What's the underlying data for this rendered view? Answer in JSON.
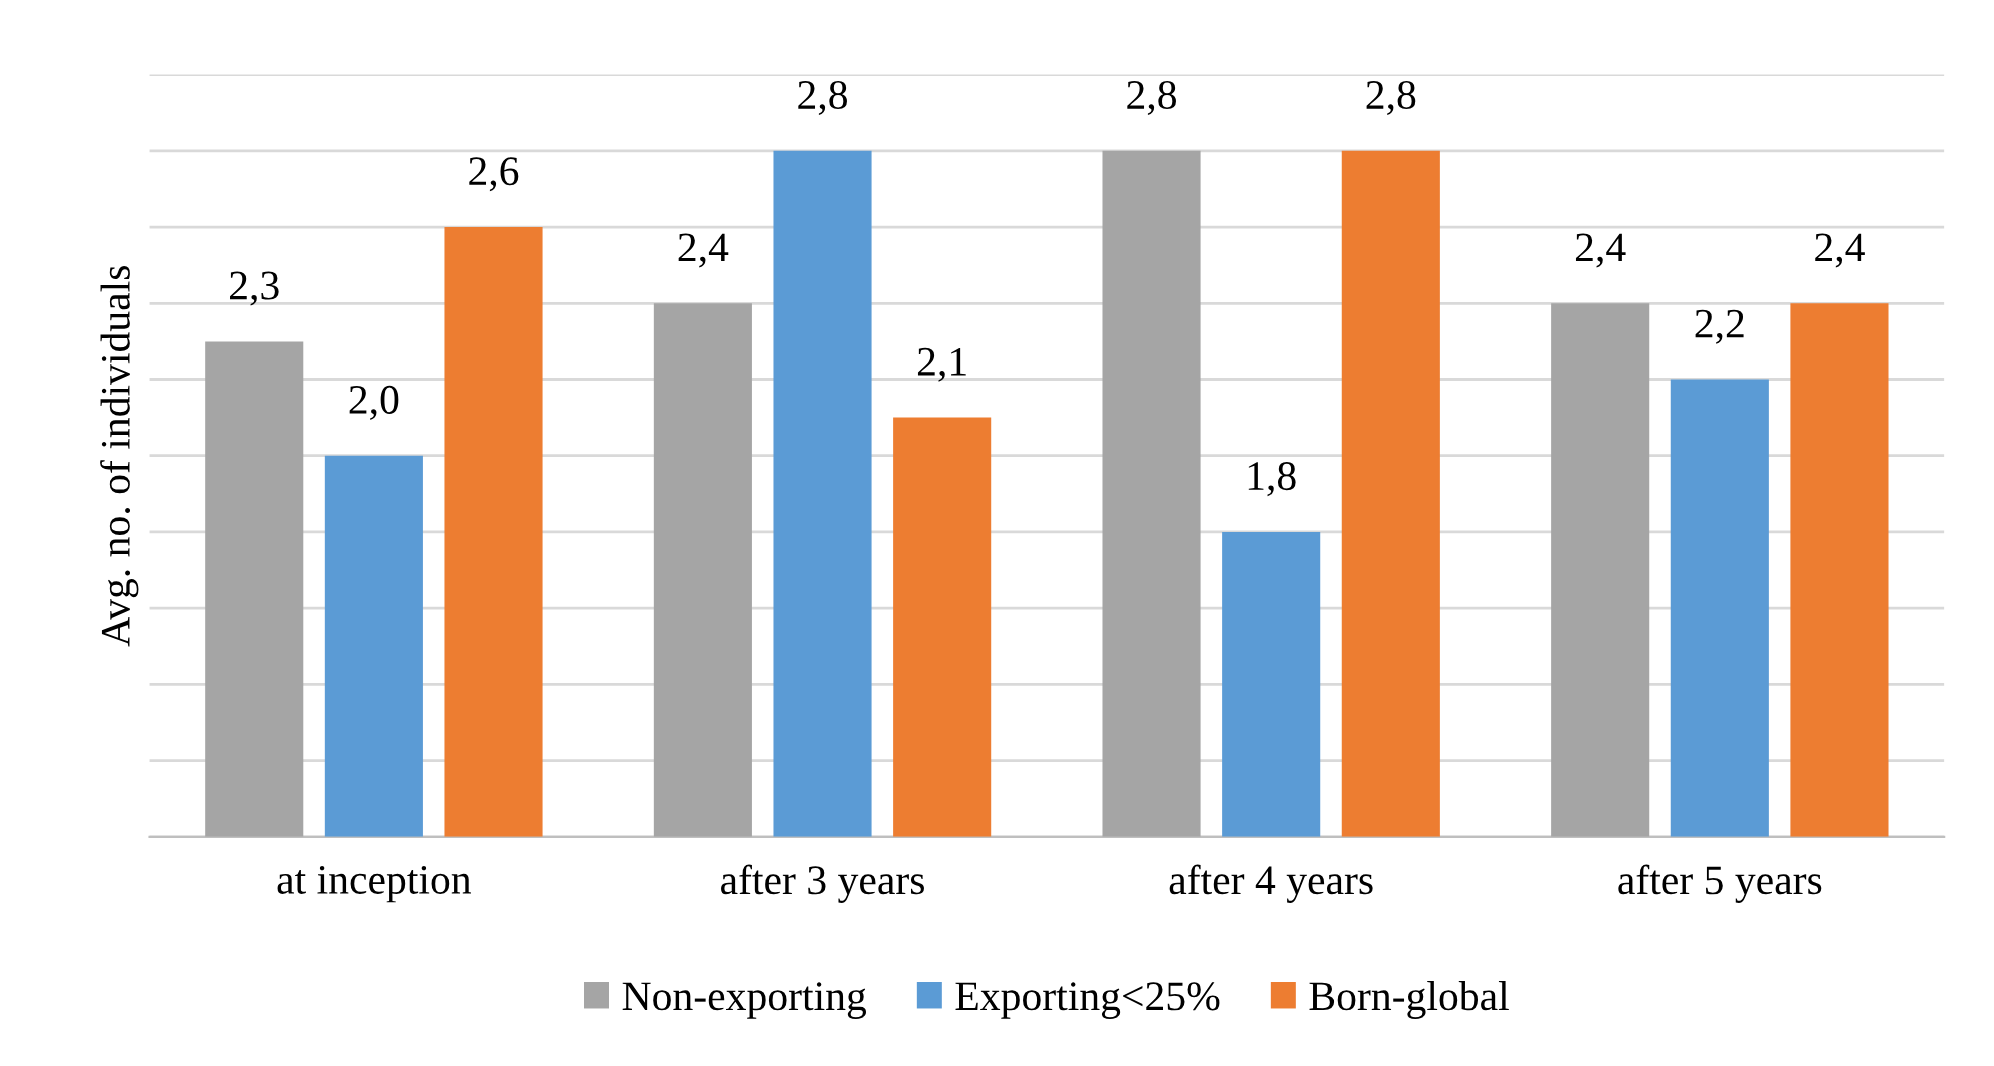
{
  "chart_data": {
    "type": "bar",
    "ylabel": "Avg. no. of individuals",
    "categories": [
      "at inception",
      "after 3 years",
      "after 4 years",
      "after 5 years"
    ],
    "series": [
      {
        "name": "Non-exporting",
        "color": "#a5a5a5",
        "values": [
          2.3,
          2.4,
          2.8,
          2.4
        ],
        "value_labels": [
          "2,3",
          "2,4",
          "2,8",
          "2,4"
        ]
      },
      {
        "name": "Exporting<25%",
        "color": "#5b9bd5",
        "values": [
          2.0,
          2.8,
          1.8,
          2.2
        ],
        "value_labels": [
          "2,0",
          "2,8",
          "1,8",
          "2,2"
        ]
      },
      {
        "name": "Born-global",
        "color": "#ed7d31",
        "values": [
          2.6,
          2.1,
          2.8,
          2.4
        ],
        "value_labels": [
          "2,6",
          "2,1",
          "2,8",
          "2,4"
        ]
      }
    ],
    "ylim": [
      1.0,
      3.0
    ],
    "yticks": [
      {
        "value": 1.0,
        "label": null
      },
      {
        "value": 1.2,
        "label": null
      },
      {
        "value": 1.4,
        "label": null
      },
      {
        "value": 1.6,
        "label": null
      },
      {
        "value": 1.8,
        "label": null
      },
      {
        "value": 2.0,
        "label": null
      },
      {
        "value": 2.2,
        "label": null
      },
      {
        "value": 2.4,
        "label": null
      },
      {
        "value": 2.6,
        "label": null
      },
      {
        "value": 2.8,
        "label": null
      },
      {
        "value": 3.0,
        "label": null
      }
    ],
    "tick_labels": "x",
    "grid": "y",
    "legend": "bottom"
  }
}
